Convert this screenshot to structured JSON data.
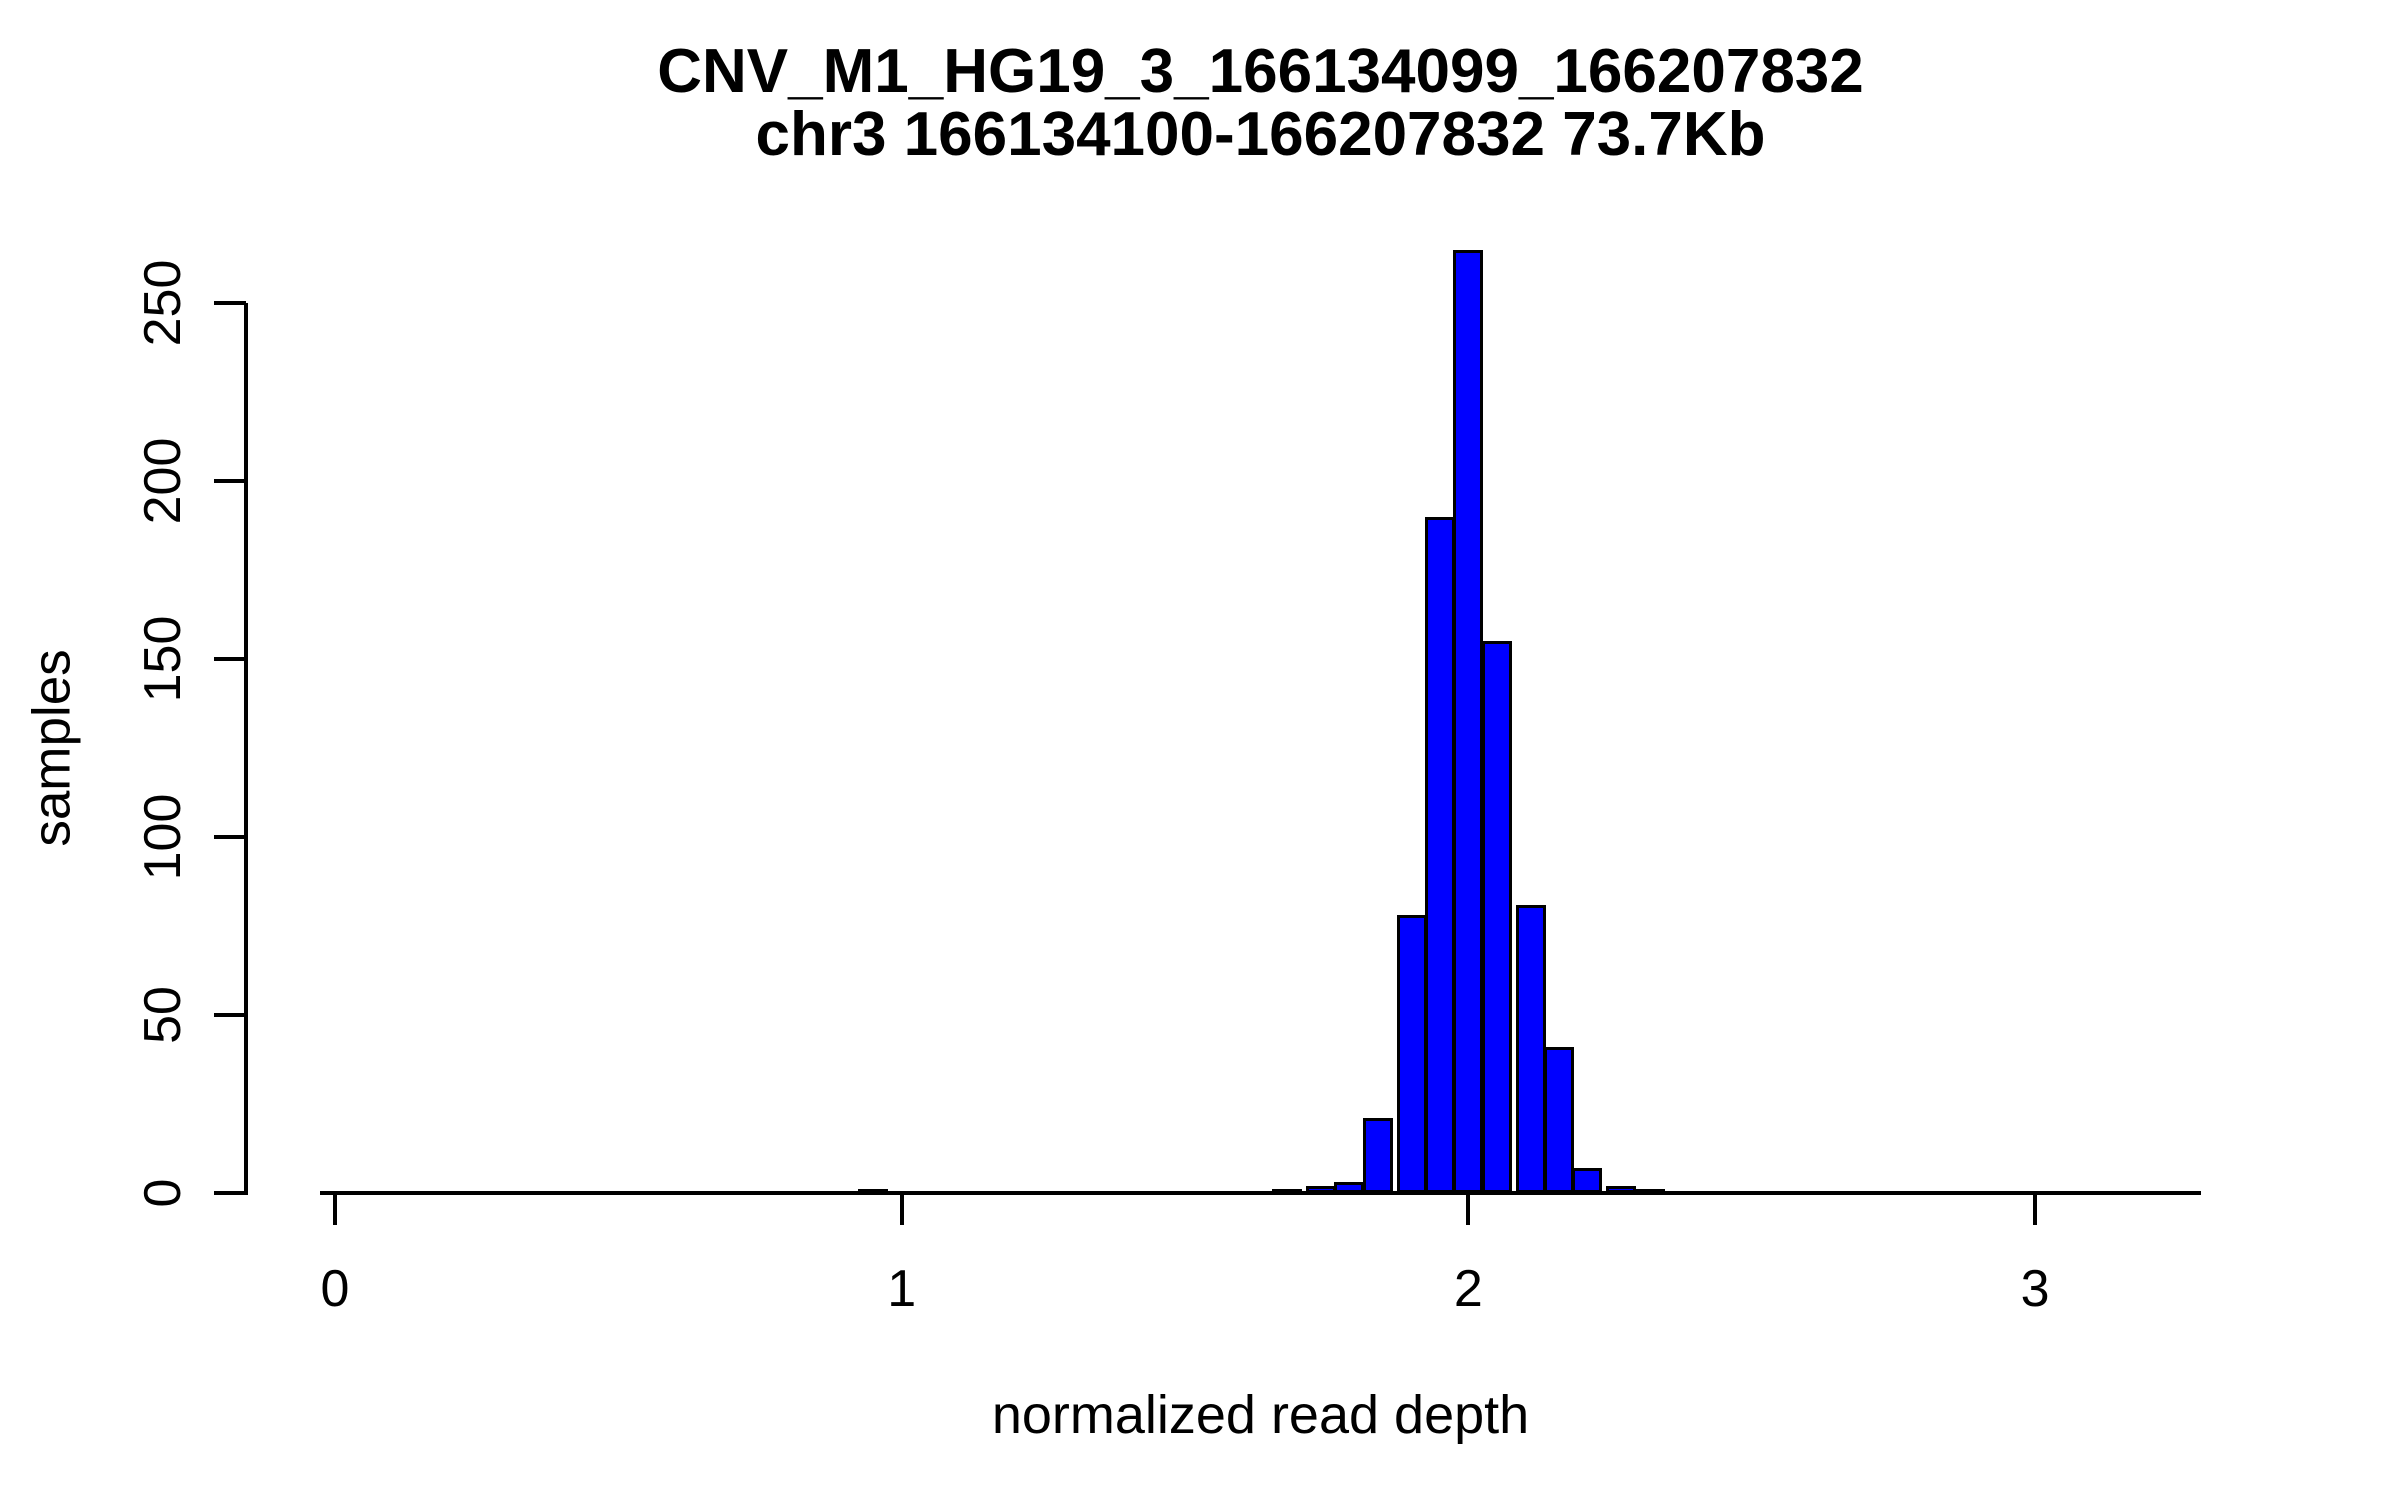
{
  "chart_data": {
    "type": "bar",
    "subtype": "histogram",
    "title": "CNV_M1_HG19_3_166134099_166207832",
    "subtitle": "chr3 166134100-166207832 73.7Kb",
    "xlabel": "normalized read depth",
    "ylabel": "samples",
    "x_ticks": [
      0,
      1,
      2,
      3
    ],
    "y_ticks": [
      0,
      50,
      100,
      150,
      200,
      250
    ],
    "xlim": [
      -0.03,
      3.3
    ],
    "ylim": [
      0,
      265
    ],
    "bin_width": 0.053,
    "grid": "off",
    "legend": "none",
    "bins": [
      {
        "center": 0.95,
        "count": 1
      },
      {
        "center": 1.68,
        "count": 1
      },
      {
        "center": 1.74,
        "count": 2
      },
      {
        "center": 1.79,
        "count": 3
      },
      {
        "center": 1.84,
        "count": 21
      },
      {
        "center": 1.9,
        "count": 78
      },
      {
        "center": 1.95,
        "count": 190
      },
      {
        "center": 2.0,
        "count": 265
      },
      {
        "center": 2.05,
        "count": 155
      },
      {
        "center": 2.11,
        "count": 81
      },
      {
        "center": 2.16,
        "count": 41
      },
      {
        "center": 2.21,
        "count": 7
      },
      {
        "center": 2.27,
        "count": 2
      },
      {
        "center": 2.32,
        "count": 1
      }
    ],
    "colors": {
      "bar_fill": "#0000ff",
      "bar_stroke": "#000000",
      "axis": "#000000",
      "text": "#000000",
      "background": "#ffffff"
    }
  }
}
